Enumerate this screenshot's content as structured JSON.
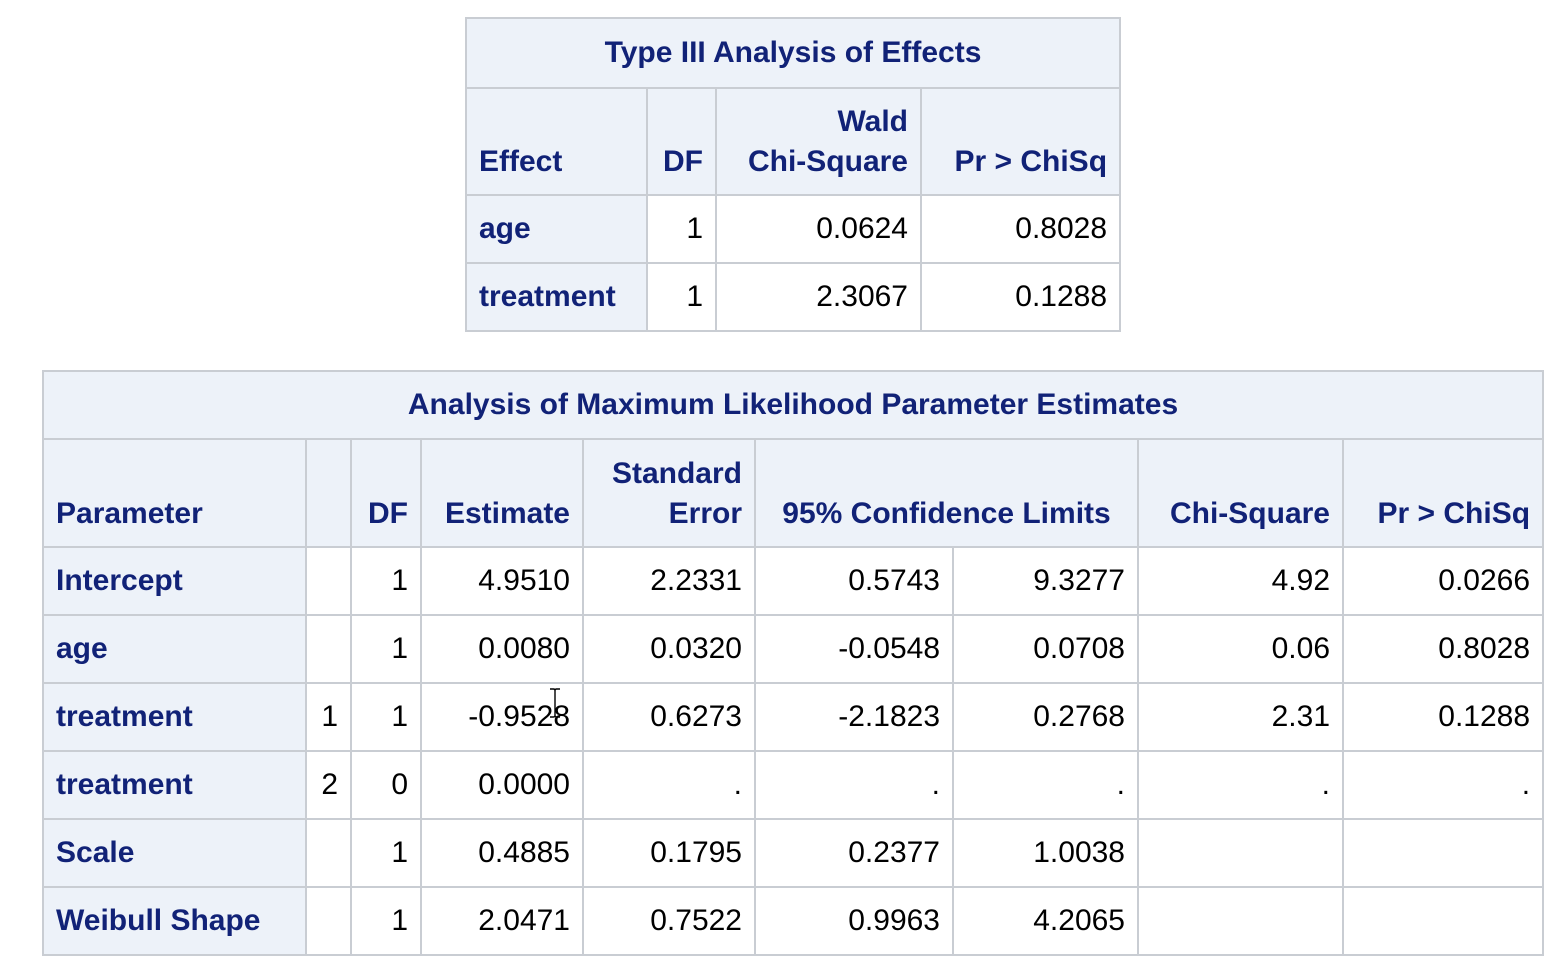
{
  "effects_table": {
    "title": "Type III Analysis of Effects",
    "columns": {
      "effect": "Effect",
      "df": "DF",
      "wald_line1": "Wald",
      "wald_line2": "Chi-Square",
      "pr": "Pr > ChiSq"
    },
    "rows": [
      {
        "effect": "age",
        "df": "1",
        "wald_chisq": "0.0624",
        "pr": "0.8028"
      },
      {
        "effect": "treatment",
        "df": "1",
        "wald_chisq": "2.3067",
        "pr": "0.1288"
      }
    ]
  },
  "estimates_table": {
    "title": "Analysis of Maximum Likelihood Parameter Estimates",
    "columns": {
      "parameter": "Parameter",
      "level": "",
      "df": "DF",
      "estimate": "Estimate",
      "se_line1": "Standard",
      "se_line2": "Error",
      "ci": "95% Confidence Limits",
      "chisq": "Chi-Square",
      "pr": "Pr > ChiSq"
    },
    "rows": [
      {
        "parameter": "Intercept",
        "level": "",
        "df": "1",
        "estimate": "4.9510",
        "se": "2.2331",
        "lower": "0.5743",
        "upper": "9.3277",
        "chisq": "4.92",
        "pr": "0.0266"
      },
      {
        "parameter": "age",
        "level": "",
        "df": "1",
        "estimate": "0.0080",
        "se": "0.0320",
        "lower": "-0.0548",
        "upper": "0.0708",
        "chisq": "0.06",
        "pr": "0.8028"
      },
      {
        "parameter": "treatment",
        "level": "1",
        "df": "1",
        "estimate": "-0.9528",
        "se": "0.6273",
        "lower": "-2.1823",
        "upper": "0.2768",
        "chisq": "2.31",
        "pr": "0.1288"
      },
      {
        "parameter": "treatment",
        "level": "2",
        "df": "0",
        "estimate": "0.0000",
        "se": ".",
        "lower": ".",
        "upper": ".",
        "chisq": ".",
        "pr": "."
      },
      {
        "parameter": "Scale",
        "level": "",
        "df": "1",
        "estimate": "0.4885",
        "se": "0.1795",
        "lower": "0.2377",
        "upper": "1.0038",
        "chisq": "",
        "pr": ""
      },
      {
        "parameter": "Weibull Shape",
        "level": "",
        "df": "1",
        "estimate": "2.0471",
        "se": "0.7522",
        "lower": "0.9963",
        "upper": "4.2065",
        "chisq": "",
        "pr": ""
      }
    ]
  },
  "cursor": {
    "icon": "text-cursor-icon"
  }
}
